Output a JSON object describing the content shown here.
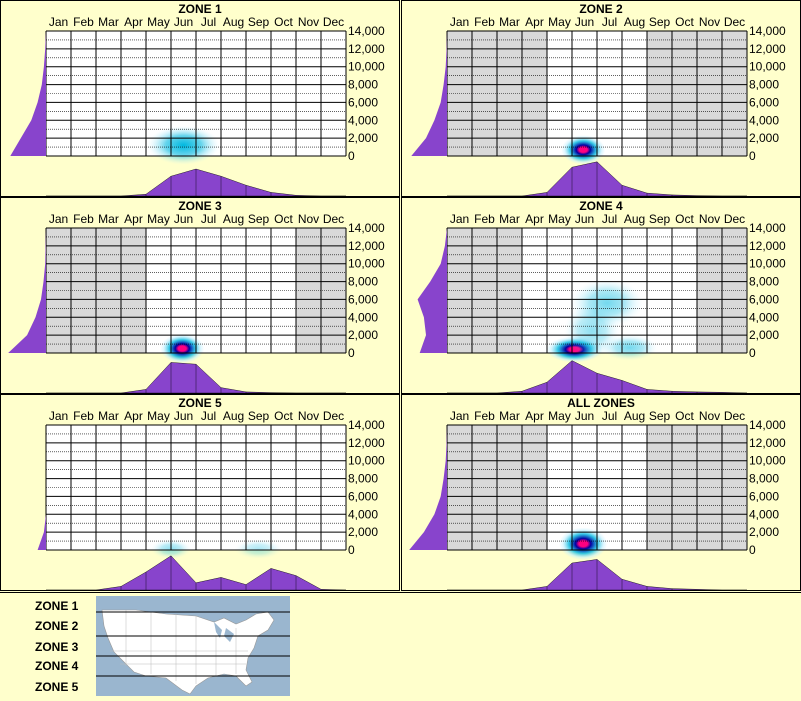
{
  "months": [
    "Jan",
    "Feb",
    "Mar",
    "Apr",
    "May",
    "Jun",
    "Jul",
    "Aug",
    "Sep",
    "Oct",
    "Nov",
    "Dec"
  ],
  "y_ticks": [
    "14,000",
    "12,000",
    "10,000",
    "8,000",
    "6,000",
    "4,000",
    "2,000",
    "0"
  ],
  "colors": {
    "background": "#ffffcc",
    "grid_bg_active": "#ffffff",
    "grid_bg_inactive": "#d9d9d9",
    "density_fill": "#8844cc",
    "heat_low": "#bfefff",
    "heat_mid": "#00b8e0",
    "heat_high": "#0000a0",
    "heat_peak": "#ff0080",
    "map_water": "#9ab6cf",
    "map_land": "#ffffff"
  },
  "chart_data": [
    {
      "type": "heatmap",
      "title": "ZONE 1",
      "x_categories": [
        "Jan",
        "Feb",
        "Mar",
        "Apr",
        "May",
        "Jun",
        "Jul",
        "Aug",
        "Sep",
        "Oct",
        "Nov",
        "Dec"
      ],
      "ylim": [
        0,
        14000
      ],
      "y_ticks": [
        0,
        2000,
        4000,
        6000,
        8000,
        10000,
        12000,
        14000
      ],
      "active_months": [
        1,
        2,
        3,
        4,
        5,
        6,
        7,
        8,
        9,
        10,
        11,
        12
      ],
      "heat_blobs": [
        {
          "month": 6.0,
          "elev": 1200,
          "spread_month": 0.9,
          "spread_elev": 900,
          "intensity": 0.55
        }
      ],
      "month_density": [
        0,
        0,
        0,
        0,
        0.05,
        0.55,
        0.75,
        0.55,
        0.3,
        0.1,
        0.02,
        0,
        0
      ],
      "elev_density": [
        0.85,
        0.6,
        0.35,
        0.2,
        0.1,
        0.05,
        0.02,
        0
      ]
    },
    {
      "type": "heatmap",
      "title": "ZONE 2",
      "x_categories": [
        "Jan",
        "Feb",
        "Mar",
        "Apr",
        "May",
        "Jun",
        "Jul",
        "Aug",
        "Sep",
        "Oct",
        "Nov",
        "Dec"
      ],
      "ylim": [
        0,
        14000
      ],
      "y_ticks": [
        0,
        2000,
        4000,
        6000,
        8000,
        10000,
        12000,
        14000
      ],
      "active_months": [
        5,
        6,
        7,
        8
      ],
      "heat_blobs": [
        {
          "month": 5.95,
          "elev": 700,
          "spread_month": 0.55,
          "spread_elev": 600,
          "intensity": 1.0
        }
      ],
      "month_density": [
        0,
        0,
        0,
        0,
        0.1,
        0.8,
        0.95,
        0.3,
        0.08,
        0.03,
        0.01,
        0,
        0
      ],
      "elev_density": [
        0.85,
        0.5,
        0.3,
        0.15,
        0.08,
        0.03,
        0.01,
        0
      ]
    },
    {
      "type": "heatmap",
      "title": "ZONE 3",
      "x_categories": [
        "Jan",
        "Feb",
        "Mar",
        "Apr",
        "May",
        "Jun",
        "Jul",
        "Aug",
        "Sep",
        "Oct",
        "Nov",
        "Dec"
      ],
      "ylim": [
        0,
        14000
      ],
      "y_ticks": [
        0,
        2000,
        4000,
        6000,
        8000,
        10000,
        12000,
        14000
      ],
      "active_months": [
        5,
        6,
        7,
        8,
        9,
        10
      ],
      "heat_blobs": [
        {
          "month": 5.95,
          "elev": 500,
          "spread_month": 0.55,
          "spread_elev": 600,
          "intensity": 1.0
        }
      ],
      "month_density": [
        0,
        0,
        0,
        0,
        0.1,
        0.85,
        0.8,
        0.15,
        0.03,
        0.01,
        0,
        0,
        0
      ],
      "elev_density": [
        0.9,
        0.45,
        0.25,
        0.12,
        0.06,
        0.02,
        0.01,
        0
      ]
    },
    {
      "type": "heatmap",
      "title": "ZONE 4",
      "x_categories": [
        "Jan",
        "Feb",
        "Mar",
        "Apr",
        "May",
        "Jun",
        "Jul",
        "Aug",
        "Sep",
        "Oct",
        "Nov",
        "Dec"
      ],
      "ylim": [
        0,
        14000
      ],
      "y_ticks": [
        0,
        2000,
        4000,
        6000,
        8000,
        10000,
        12000,
        14000
      ],
      "active_months": [
        4,
        5,
        6,
        7,
        8,
        9,
        10
      ],
      "heat_blobs": [
        {
          "month": 5.6,
          "elev": 400,
          "spread_month": 0.7,
          "spread_elev": 500,
          "intensity": 1.0
        },
        {
          "month": 6.9,
          "elev": 5600,
          "spread_month": 0.9,
          "spread_elev": 1200,
          "intensity": 0.25
        },
        {
          "month": 6.3,
          "elev": 2500,
          "spread_month": 0.7,
          "spread_elev": 1500,
          "intensity": 0.2
        },
        {
          "month": 7.8,
          "elev": 600,
          "spread_month": 0.7,
          "spread_elev": 500,
          "intensity": 0.25
        }
      ],
      "month_density": [
        0,
        0,
        0,
        0.05,
        0.3,
        0.9,
        0.55,
        0.35,
        0.1,
        0.05,
        0.03,
        0.02,
        0
      ],
      "elev_density": [
        0.65,
        0.5,
        0.55,
        0.7,
        0.4,
        0.15,
        0.05,
        0
      ]
    },
    {
      "type": "heatmap",
      "title": "ZONE 5",
      "x_categories": [
        "Jan",
        "Feb",
        "Mar",
        "Apr",
        "May",
        "Jun",
        "Jul",
        "Aug",
        "Sep",
        "Oct",
        "Nov",
        "Dec"
      ],
      "ylim": [
        0,
        14000
      ],
      "y_ticks": [
        0,
        2000,
        4000,
        6000,
        8000,
        10000,
        12000,
        14000
      ],
      "active_months": [
        1,
        2,
        3,
        4,
        5,
        6,
        7,
        8,
        9,
        10,
        11,
        12
      ],
      "heat_blobs": [
        {
          "month": 5.5,
          "elev": 100,
          "spread_month": 0.5,
          "spread_elev": 300,
          "intensity": 0.2
        },
        {
          "month": 9.0,
          "elev": 100,
          "spread_month": 0.6,
          "spread_elev": 300,
          "intensity": 0.15
        }
      ],
      "month_density": [
        0,
        0,
        0,
        0.1,
        0.5,
        0.95,
        0.2,
        0.35,
        0.15,
        0.6,
        0.4,
        0.02,
        0
      ],
      "elev_density": [
        0.2,
        0.05,
        0,
        0,
        0,
        0,
        0,
        0
      ]
    },
    {
      "type": "heatmap",
      "title": "ALL ZONES",
      "x_categories": [
        "Jan",
        "Feb",
        "Mar",
        "Apr",
        "May",
        "Jun",
        "Jul",
        "Aug",
        "Sep",
        "Oct",
        "Nov",
        "Dec"
      ],
      "ylim": [
        0,
        14000
      ],
      "y_ticks": [
        0,
        2000,
        4000,
        6000,
        8000,
        10000,
        12000,
        14000
      ],
      "active_months": [
        5,
        6,
        7,
        8
      ],
      "heat_blobs": [
        {
          "month": 5.95,
          "elev": 700,
          "spread_month": 0.6,
          "spread_elev": 700,
          "intensity": 1.0
        }
      ],
      "month_density": [
        0,
        0,
        0,
        0,
        0.1,
        0.75,
        0.85,
        0.3,
        0.1,
        0.04,
        0.02,
        0,
        0
      ],
      "elev_density": [
        0.9,
        0.55,
        0.3,
        0.15,
        0.08,
        0.03,
        0.01,
        0
      ]
    }
  ],
  "legend": {
    "zones": [
      "ZONE 1",
      "ZONE 2",
      "ZONE 3",
      "ZONE 4",
      "ZONE 5"
    ]
  }
}
